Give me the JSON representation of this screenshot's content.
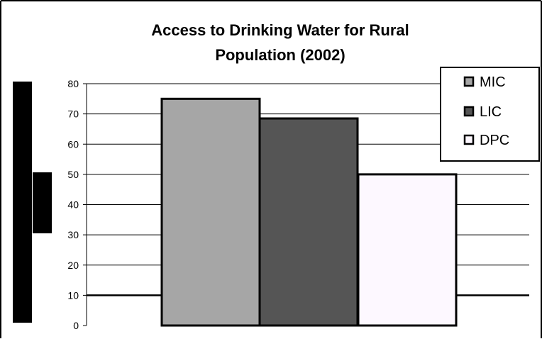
{
  "chart_data": {
    "type": "bar",
    "title_lines": [
      "Access to Drinking Water for Rural",
      "Population (2002)"
    ],
    "xlabel": "",
    "ylabel": "",
    "ylim": [
      0,
      80
    ],
    "yticks": [
      0,
      10,
      20,
      30,
      40,
      50,
      60,
      70,
      80
    ],
    "grid": true,
    "legend_position": "top-right",
    "series": [
      {
        "name": "MIC",
        "value": 75,
        "color": "#a6a6a6"
      },
      {
        "name": "LIC",
        "value": 68.5,
        "color": "#555555"
      },
      {
        "name": "DPC",
        "value": 50,
        "color": "#fdf8ff"
      }
    ]
  }
}
